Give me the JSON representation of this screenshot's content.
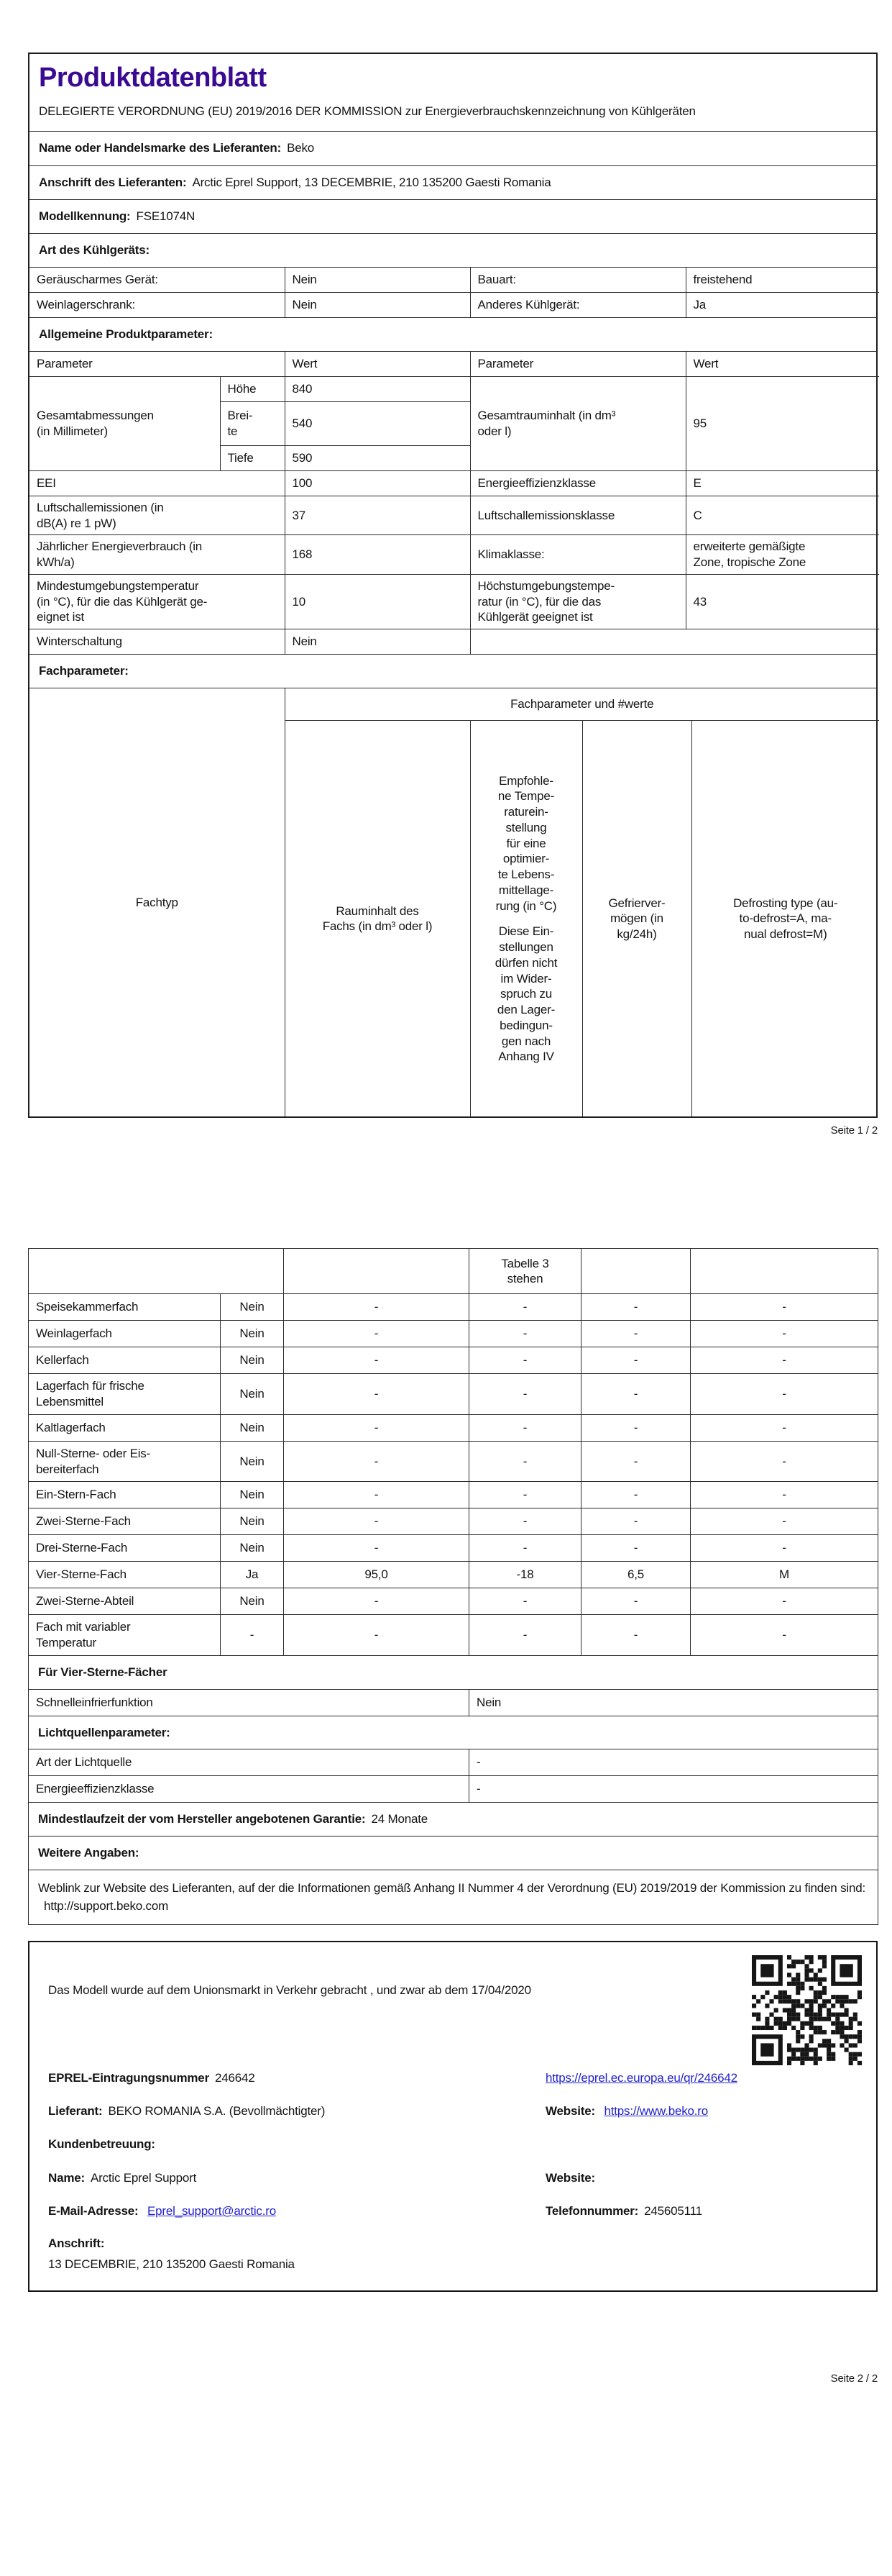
{
  "theme": {
    "title_color": "#3a0b92",
    "link_color": "#2323cc"
  },
  "p1": {
    "title": "Produktdatenblatt",
    "regulation": "DELEGIERTE VERORDNUNG (EU) 2019/2016 DER KOMMISSION zur Energieverbrauchskennzeichnung von Kühlgeräten",
    "supplier_name_label": "Name oder Handelsmarke des Lieferanten:",
    "supplier_name_value": "Beko",
    "supplier_address_label": "Anschrift des Lieferanten:",
    "supplier_address_value": "Arctic Eprel Support, 13 DECEMBRIE, 210 135200 Gaesti Romania",
    "model_label": "Modellkennung:",
    "model_value": "FSE1074N",
    "type_section": "Art des Kühlgeräts:",
    "quiet_label": "Geräuscharmes Gerät:",
    "quiet_value": "Nein",
    "design_label": "Bauart:",
    "design_value": "freistehend",
    "wine_label": "Weinlagerschrank:",
    "wine_value": "Nein",
    "other_label": "Anderes Kühlgerät:",
    "other_value": "Ja",
    "general_section": "Allgemeine Produktparameter:",
    "col_parameter": "Parameter",
    "col_wert": "Wert",
    "dims_label": "Gesamtabmessungen\n(in Millimeter)",
    "dim_h_label": "Höhe",
    "dim_h_value": "840",
    "dim_b_label": "Brei-\nte",
    "dim_b_value": "540",
    "dim_t_label": "Tiefe",
    "dim_t_value": "590",
    "volume_label": "Gesamtrauminhalt (in dm³\noder l)",
    "volume_value": "95",
    "eei_label": "EEI",
    "eei_value": "100",
    "eec_label": "Energieeffizienzklasse",
    "eec_value": "E",
    "noise_label": "Luftschallemissionen (in\ndB(A) re 1 pW)",
    "noise_value": "37",
    "noise_class_label": "Luftschallemissionsklasse",
    "noise_class_value": "C",
    "energy_label": "Jährlicher Energieverbrauch (in\nkWh/a)",
    "energy_value": "168",
    "climate_label": "Klimaklasse:",
    "climate_value": "erweiterte gemäßigte\nZone, tropische Zone",
    "mintemp_label": "Mindestumgebungstemperatur\n(in °C), für die das Kühlgerät ge-\neignet ist",
    "mintemp_value": "10",
    "maxtemp_label": "Höchstumgebungstempe-\nratur (in °C), für die das\nKühlgerät geeignet ist",
    "maxtemp_value": "43",
    "winter_label": "Winterschaltung",
    "winter_value": "Nein",
    "fach_section": "Fachparameter:",
    "fach_group_header": "Fachparameter und #werte",
    "fachtyp_label": "Fachtyp",
    "vol_col": "Rauminhalt des\nFachs (in dm³ oder l)",
    "temp_col_a": "Empfohle-\nne Tempe-\nraturein-\nstellung\nfür eine\noptimier-\nte Lebens-\nmittellage-\nrung (in °C)",
    "temp_col_b": "Diese Ein-\nstellungen\ndürfen nicht\nim Wider-\nspruch zu\nden Lager-\nbedingun-\ngen nach\nAnhang IV",
    "freeze_col": "Gefrierver-\nmögen (in\nkg/24h)",
    "defrost_col": "Defrosting type (au-\nto-defrost=A, ma-\nnual defrost=M)",
    "footer": "Seite 1 / 2"
  },
  "p2": {
    "temp_col_cont": "Tabelle 3\nstehen",
    "compartments": [
      {
        "name": "Speisekammerfach",
        "present": "Nein",
        "vol": "-",
        "temp": "-",
        "freeze": "-",
        "defrost": "-"
      },
      {
        "name": "Weinlagerfach",
        "present": "Nein",
        "vol": "-",
        "temp": "-",
        "freeze": "-",
        "defrost": "-"
      },
      {
        "name": "Kellerfach",
        "present": "Nein",
        "vol": "-",
        "temp": "-",
        "freeze": "-",
        "defrost": "-"
      },
      {
        "name": "Lagerfach für frische\nLebensmittel",
        "present": "Nein",
        "vol": "-",
        "temp": "-",
        "freeze": "-",
        "defrost": "-"
      },
      {
        "name": "Kaltlagerfach",
        "present": "Nein",
        "vol": "-",
        "temp": "-",
        "freeze": "-",
        "defrost": "-"
      },
      {
        "name": "Null-Sterne- oder Eis-\nbereiterfach",
        "present": "Nein",
        "vol": "-",
        "temp": "-",
        "freeze": "-",
        "defrost": "-"
      },
      {
        "name": "Ein-Stern-Fach",
        "present": "Nein",
        "vol": "-",
        "temp": "-",
        "freeze": "-",
        "defrost": "-"
      },
      {
        "name": "Zwei-Sterne-Fach",
        "present": "Nein",
        "vol": "-",
        "temp": "-",
        "freeze": "-",
        "defrost": "-"
      },
      {
        "name": "Drei-Sterne-Fach",
        "present": "Nein",
        "vol": "-",
        "temp": "-",
        "freeze": "-",
        "defrost": "-"
      },
      {
        "name": "Vier-Sterne-Fach",
        "present": "Ja",
        "vol": "95,0",
        "temp": "-18",
        "freeze": "6,5",
        "defrost": "M"
      },
      {
        "name": "Zwei-Sterne-Abteil",
        "present": "Nein",
        "vol": "-",
        "temp": "-",
        "freeze": "-",
        "defrost": "-"
      },
      {
        "name": "Fach mit variabler\nTemperatur",
        "present": "-",
        "vol": "-",
        "temp": "-",
        "freeze": "-",
        "defrost": "-"
      }
    ],
    "four_star_section": "Für Vier-Sterne-Fächer",
    "fastfreeze_label": "Schnelleinfrierfunktion",
    "fastfreeze_value": "Nein",
    "light_section": "Lichtquellenparameter:",
    "light_type_label": "Art der Lichtquelle",
    "light_type_value": "-",
    "light_class_label": "Energieeffizienzklasse",
    "light_class_value": "-",
    "warranty_label": "Mindestlaufzeit der vom Hersteller angebotenen Garantie:",
    "warranty_value": "24 Monate",
    "more_section": "Weitere Angaben:",
    "weblink_label": "Weblink zur Website des Lieferanten, auf der die Informationen gemäß Anhang II Nummer 4 der Verordnung (EU) 2019/2019 der Kommission zu finden sind:",
    "weblink_value": "http://support.beko.com",
    "footer": "Seite 2 / 2"
  },
  "reg": {
    "market_text": "Das Modell wurde auf dem Unionsmarkt in Verkehr gebracht , und zwar ab dem 17/04/2020",
    "qr_icon": "qr-code",
    "eprel_label": "EPREL-Eintragungsnummer",
    "eprel_value": "246642",
    "eprel_link": "https://eprel.ec.europa.eu/qr/246642",
    "supplier_label": "Lieferant:",
    "supplier_value": "BEKO ROMANIA S.A. (Bevollmächtigter)",
    "website_label": "Website:",
    "website_link": "https://www.beko.ro",
    "support_section": "Kundenbetreuung:",
    "name_label": "Name:",
    "name_value": "Arctic Eprel Support",
    "website2_label": "Website:",
    "email_label": "E-Mail-Adresse:",
    "email_value": "Eprel_support@arctic.ro",
    "phone_label": "Telefonnummer:",
    "phone_value": "245605111",
    "address_label": "Anschrift:",
    "address_value": "13 DECEMBRIE, 210 135200 Gaesti Romania"
  }
}
